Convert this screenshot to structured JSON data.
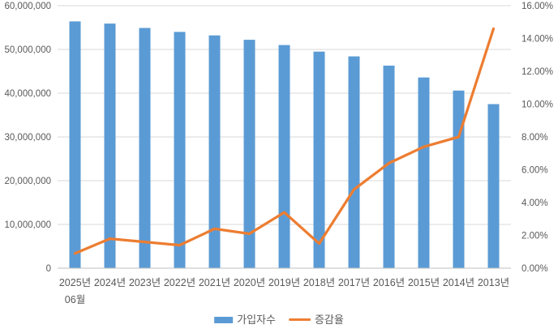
{
  "chart_data": {
    "type": "combo-bar-line",
    "title": "",
    "categories": [
      "2025년 06월",
      "2024년",
      "2023년",
      "2022년",
      "2021년",
      "2020년",
      "2019년",
      "2018년",
      "2017년",
      "2016년",
      "2015년",
      "2014년",
      "2013년"
    ],
    "series": [
      {
        "name": "가입자수",
        "type": "bar",
        "axis": "left",
        "color": "#5B9BD5",
        "values": [
          56400000,
          55900000,
          54900000,
          54000000,
          53200000,
          52200000,
          51000000,
          49500000,
          48400000,
          46300000,
          43600000,
          40600000,
          37500000
        ]
      },
      {
        "name": "증감율",
        "type": "line",
        "axis": "right",
        "color": "#ED7D31",
        "values": [
          0.9,
          1.8,
          1.6,
          1.4,
          2.4,
          2.1,
          3.4,
          1.5,
          4.8,
          6.4,
          7.4,
          8.0,
          14.6
        ]
      }
    ],
    "left_axis": {
      "min": 0,
      "max": 60000000,
      "step": 10000000,
      "tick_labels": [
        "0",
        "10,000,000",
        "20,000,000",
        "30,000,000",
        "40,000,000",
        "50,000,000",
        "60,000,000"
      ]
    },
    "right_axis": {
      "min": 0,
      "max": 16,
      "step": 2,
      "unit": "%",
      "tick_labels": [
        "0.00%",
        "2.00%",
        "4.00%",
        "6.00%",
        "8.00%",
        "10.00%",
        "12.00%",
        "14.00%",
        "16.00%"
      ]
    },
    "grid": true,
    "legend_position": "bottom"
  },
  "colors": {
    "bar": "#5B9BD5",
    "line": "#ED7D31",
    "grid": "#D9D9D9",
    "axis": "#BFBFBF",
    "text": "#595959",
    "background": "#FFFFFF"
  }
}
